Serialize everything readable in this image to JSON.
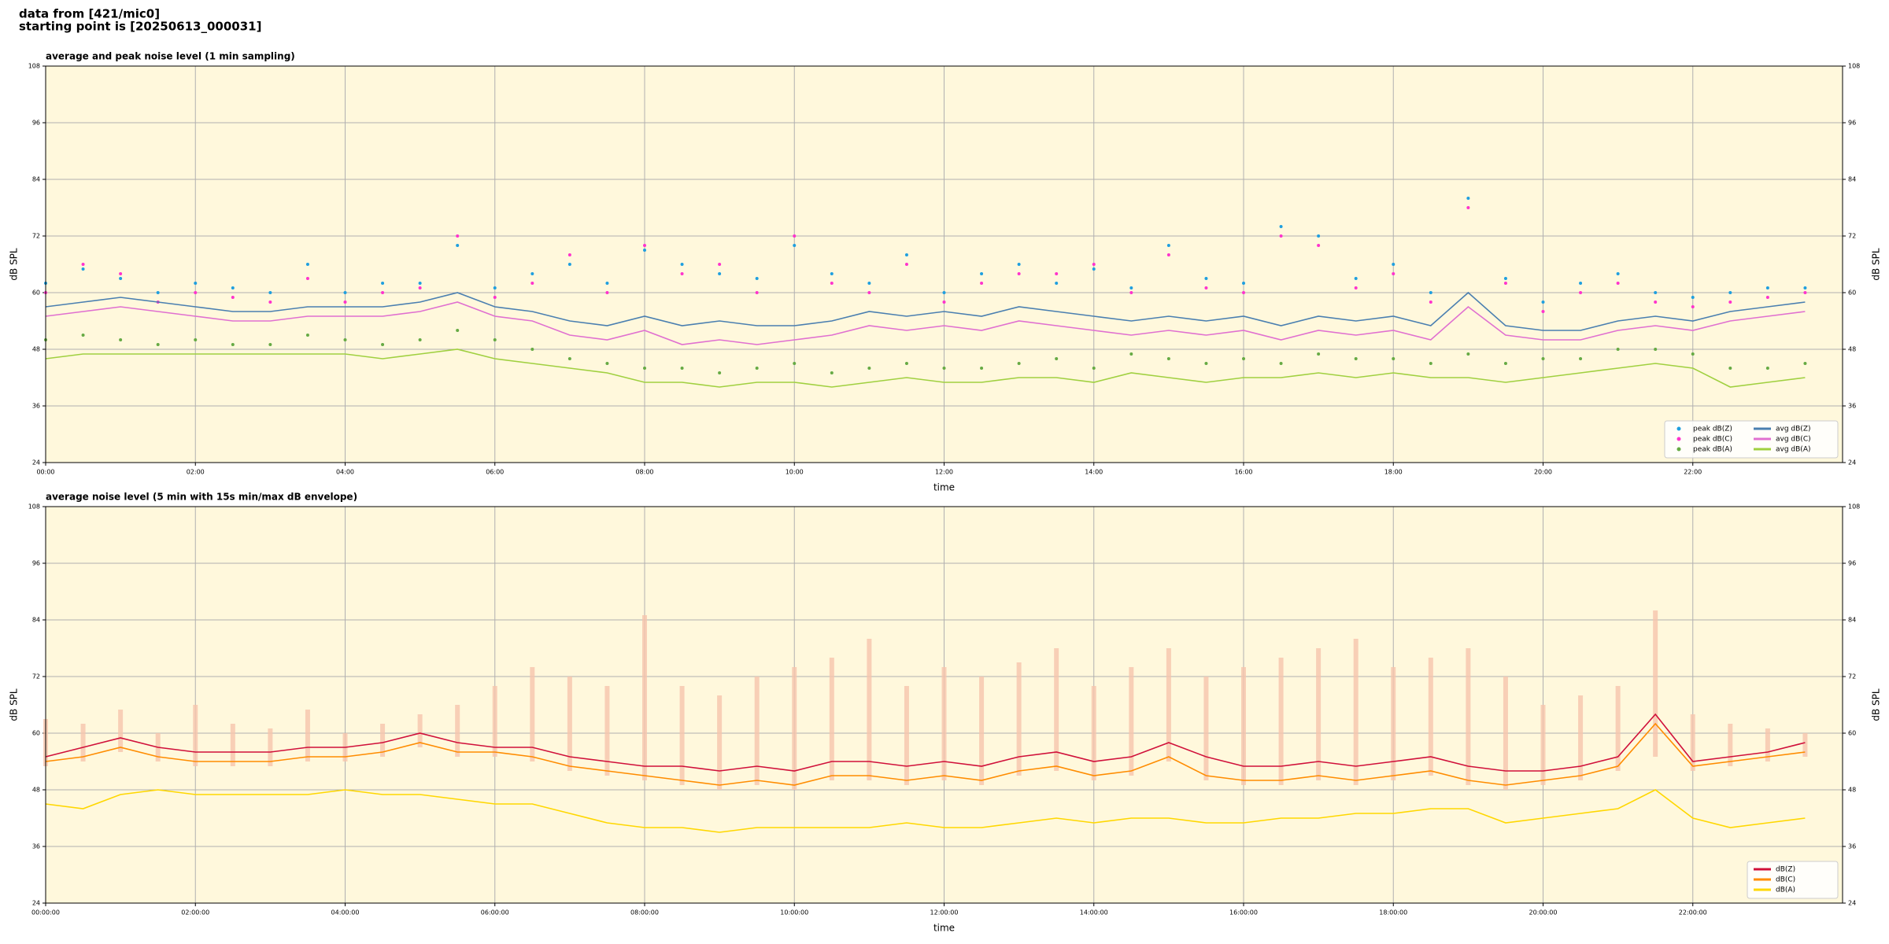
{
  "header": {
    "lines": [
      "data from [421/mic0]",
      "starting point is [20250613_000031]"
    ]
  },
  "chart_data": [
    {
      "type": "line",
      "title": "average and peak noise level (1 min sampling)",
      "xlabel": "time",
      "ylabel": "dB SPL",
      "legend": "lower right",
      "grid": true,
      "xlim": [
        0,
        24
      ],
      "ylim": [
        24,
        108
      ],
      "yticks": [
        24,
        36,
        48,
        60,
        72,
        84,
        96,
        108
      ],
      "xticks": [
        {
          "value": 0,
          "label": "00:00"
        },
        {
          "value": 2,
          "label": "02:00"
        },
        {
          "value": 4,
          "label": "04:00"
        },
        {
          "value": 6,
          "label": "06:00"
        },
        {
          "value": 8,
          "label": "08:00"
        },
        {
          "value": 10,
          "label": "10:00"
        },
        {
          "value": 12,
          "label": "12:00"
        },
        {
          "value": 14,
          "label": "14:00"
        },
        {
          "value": 16,
          "label": "16:00"
        },
        {
          "value": 18,
          "label": "18:00"
        },
        {
          "value": 20,
          "label": "20:00"
        },
        {
          "value": 22,
          "label": "22:00"
        }
      ],
      "x": [
        0,
        0.5,
        1,
        1.5,
        2,
        2.5,
        3,
        3.5,
        4,
        4.5,
        5,
        5.5,
        6,
        6.5,
        7,
        7.5,
        8,
        8.5,
        9,
        9.5,
        10,
        10.5,
        11,
        11.5,
        12,
        12.5,
        13,
        13.5,
        14,
        14.5,
        15,
        15.5,
        16,
        16.5,
        17,
        17.5,
        18,
        18.5,
        19,
        19.5,
        20,
        20.5,
        21,
        21.5,
        22,
        22.5,
        23,
        23.5
      ],
      "series": [
        {
          "name": "peak dB(Z)",
          "mode": "markers",
          "color": "#1f9fdf",
          "values": [
            62,
            65,
            63,
            60,
            62,
            61,
            60,
            66,
            60,
            62,
            62,
            70,
            61,
            64,
            66,
            62,
            69,
            66,
            64,
            63,
            70,
            64,
            62,
            68,
            60,
            64,
            66,
            62,
            65,
            61,
            70,
            63,
            62,
            74,
            72,
            63,
            66,
            60,
            80,
            63,
            58,
            62,
            64,
            60,
            59,
            60,
            61,
            61
          ]
        },
        {
          "name": "peak dB(C)",
          "mode": "markers",
          "color": "#ff33cc",
          "values": [
            60,
            66,
            64,
            58,
            60,
            59,
            58,
            63,
            58,
            60,
            61,
            72,
            59,
            62,
            68,
            60,
            70,
            64,
            66,
            60,
            72,
            62,
            60,
            66,
            58,
            62,
            64,
            64,
            66,
            60,
            68,
            61,
            60,
            72,
            70,
            61,
            64,
            58,
            78,
            62,
            56,
            60,
            62,
            58,
            57,
            58,
            59,
            60
          ]
        },
        {
          "name": "peak dB(A)",
          "mode": "markers",
          "color": "#66aa44",
          "values": [
            50,
            51,
            50,
            49,
            50,
            49,
            49,
            51,
            50,
            49,
            50,
            52,
            50,
            48,
            46,
            45,
            44,
            44,
            43,
            44,
            45,
            43,
            44,
            45,
            44,
            44,
            45,
            46,
            44,
            47,
            46,
            45,
            46,
            45,
            47,
            46,
            46,
            45,
            47,
            45,
            46,
            46,
            48,
            48,
            47,
            44,
            44,
            45
          ]
        },
        {
          "name": "avg dB(Z)",
          "mode": "lines",
          "color": "#4a7fb0",
          "values": [
            57,
            58,
            59,
            58,
            57,
            56,
            56,
            57,
            57,
            57,
            58,
            60,
            57,
            56,
            54,
            53,
            55,
            53,
            54,
            53,
            53,
            54,
            56,
            55,
            56,
            55,
            57,
            56,
            55,
            54,
            55,
            54,
            55,
            53,
            55,
            54,
            55,
            53,
            60,
            53,
            52,
            52,
            54,
            55,
            54,
            56,
            57,
            58
          ]
        },
        {
          "name": "avg dB(C)",
          "mode": "lines",
          "color": "#e070d0",
          "values": [
            55,
            56,
            57,
            56,
            55,
            54,
            54,
            55,
            55,
            55,
            56,
            58,
            55,
            54,
            51,
            50,
            52,
            49,
            50,
            49,
            50,
            51,
            53,
            52,
            53,
            52,
            54,
            53,
            52,
            51,
            52,
            51,
            52,
            50,
            52,
            51,
            52,
            50,
            57,
            51,
            50,
            50,
            52,
            53,
            52,
            54,
            55,
            56
          ]
        },
        {
          "name": "avg dB(A)",
          "mode": "lines",
          "color": "#a0d040",
          "values": [
            46,
            47,
            47,
            47,
            47,
            47,
            47,
            47,
            47,
            46,
            47,
            48,
            46,
            45,
            44,
            43,
            41,
            41,
            40,
            41,
            41,
            40,
            41,
            42,
            41,
            41,
            42,
            42,
            41,
            43,
            42,
            41,
            42,
            42,
            43,
            42,
            43,
            42,
            42,
            41,
            42,
            43,
            44,
            45,
            44,
            40,
            41,
            42
          ]
        }
      ]
    },
    {
      "type": "line",
      "title": "average noise level (5 min with 15s min/max dB envelope)",
      "xlabel": "time",
      "ylabel": "dB SPL",
      "legend": "lower right",
      "grid": true,
      "xlim": [
        0,
        24
      ],
      "ylim": [
        24,
        108
      ],
      "yticks": [
        24,
        36,
        48,
        60,
        72,
        84,
        96,
        108
      ],
      "xticks": [
        {
          "value": 0,
          "label": "00:00:00"
        },
        {
          "value": 2,
          "label": "02:00:00"
        },
        {
          "value": 4,
          "label": "04:00:00"
        },
        {
          "value": 6,
          "label": "06:00:00"
        },
        {
          "value": 8,
          "label": "08:00:00"
        },
        {
          "value": 10,
          "label": "10:00:00"
        },
        {
          "value": 12,
          "label": "12:00:00"
        },
        {
          "value": 14,
          "label": "14:00:00"
        },
        {
          "value": 16,
          "label": "16:00:00"
        },
        {
          "value": 18,
          "label": "18:00:00"
        },
        {
          "value": 20,
          "label": "20:00:00"
        },
        {
          "value": 22,
          "label": "22:00:00"
        }
      ],
      "x": [
        0,
        0.5,
        1,
        1.5,
        2,
        2.5,
        3,
        3.5,
        4,
        4.5,
        5,
        5.5,
        6,
        6.5,
        7,
        7.5,
        8,
        8.5,
        9,
        9.5,
        10,
        10.5,
        11,
        11.5,
        12,
        12.5,
        13,
        13.5,
        14,
        14.5,
        15,
        15.5,
        16,
        16.5,
        17,
        17.5,
        18,
        18.5,
        19,
        19.5,
        20,
        20.5,
        21,
        21.5,
        22,
        22.5,
        23,
        23.5
      ],
      "series": [
        {
          "name": "dB(Z)",
          "mode": "lines",
          "color": "#d0103a",
          "envelope_color": "#f6c4ac",
          "values": [
            55,
            57,
            59,
            57,
            56,
            56,
            56,
            57,
            57,
            58,
            60,
            58,
            57,
            57,
            55,
            54,
            53,
            53,
            52,
            53,
            52,
            54,
            54,
            53,
            54,
            53,
            55,
            56,
            54,
            55,
            58,
            55,
            53,
            53,
            54,
            53,
            54,
            55,
            53,
            52,
            52,
            53,
            55,
            64,
            54,
            55,
            56,
            58
          ],
          "low": [
            53,
            54,
            56,
            54,
            53,
            53,
            53,
            54,
            54,
            55,
            57,
            55,
            55,
            54,
            52,
            51,
            50,
            49,
            48,
            49,
            48,
            50,
            50,
            49,
            50,
            49,
            51,
            52,
            50,
            51,
            54,
            50,
            49,
            49,
            50,
            49,
            50,
            51,
            49,
            48,
            49,
            50,
            52,
            55,
            52,
            53,
            54,
            55
          ],
          "high": [
            63,
            62,
            65,
            60,
            66,
            62,
            61,
            65,
            60,
            62,
            64,
            66,
            70,
            74,
            72,
            70,
            85,
            70,
            68,
            72,
            74,
            76,
            80,
            70,
            74,
            72,
            75,
            78,
            70,
            74,
            78,
            72,
            74,
            76,
            78,
            80,
            74,
            76,
            78,
            72,
            66,
            68,
            70,
            86,
            64,
            62,
            61,
            60
          ]
        },
        {
          "name": "dB(C)",
          "mode": "lines",
          "color": "#ff8c00",
          "values": [
            54,
            55,
            57,
            55,
            54,
            54,
            54,
            55,
            55,
            56,
            58,
            56,
            56,
            55,
            53,
            52,
            51,
            50,
            49,
            50,
            49,
            51,
            51,
            50,
            51,
            50,
            52,
            53,
            51,
            52,
            55,
            51,
            50,
            50,
            51,
            50,
            51,
            52,
            50,
            49,
            50,
            51,
            53,
            62,
            53,
            54,
            55,
            56
          ]
        },
        {
          "name": "dB(A)",
          "mode": "lines",
          "color": "#ffd700",
          "values": [
            45,
            44,
            47,
            48,
            47,
            47,
            47,
            47,
            48,
            47,
            47,
            46,
            45,
            45,
            43,
            41,
            40,
            40,
            39,
            40,
            40,
            40,
            40,
            41,
            40,
            40,
            41,
            42,
            41,
            42,
            42,
            41,
            41,
            42,
            42,
            43,
            43,
            44,
            44,
            41,
            42,
            43,
            44,
            48,
            42,
            40,
            41,
            42
          ]
        }
      ]
    }
  ]
}
